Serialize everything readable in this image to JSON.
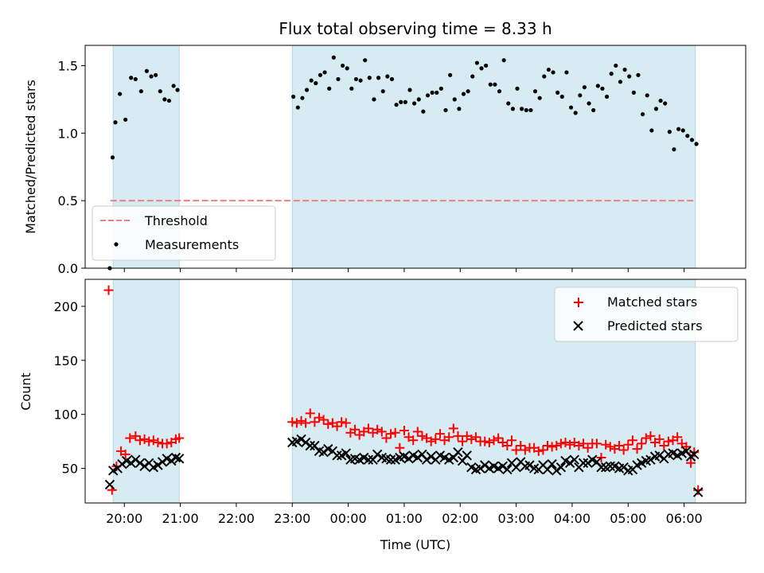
{
  "chart_data": [
    {
      "type": "scatter",
      "title": "Flux total observing time = 8.33 h",
      "xlabel": "",
      "ylabel": "Matched/Predicted stars",
      "xlim": [
        19.3,
        31.1
      ],
      "ylim": [
        0.0,
        1.65
      ],
      "yticks": [
        "0.0",
        "0.5",
        "1.0",
        "1.5"
      ],
      "ytick_values": [
        0.0,
        0.5,
        1.0,
        1.5
      ],
      "shaded_intervals": [
        [
          19.8,
          20.98
        ],
        [
          23.0,
          30.2
        ]
      ],
      "threshold": {
        "label": "Threshold",
        "value": 0.5,
        "color": "#f08080",
        "xrange": [
          19.75,
          30.2
        ]
      },
      "series": [
        {
          "name": "Measurements",
          "color": "#000000",
          "x": [
            19.74,
            19.79,
            19.84,
            19.92,
            20.02,
            20.12,
            20.2,
            20.3,
            20.4,
            20.48,
            20.56,
            20.64,
            20.72,
            20.8,
            20.88,
            20.95,
            23.02,
            23.1,
            23.18,
            23.26,
            23.34,
            23.42,
            23.5,
            23.58,
            23.66,
            23.74,
            23.82,
            23.9,
            23.98,
            24.06,
            24.14,
            24.22,
            24.3,
            24.38,
            24.46,
            24.54,
            24.62,
            24.7,
            24.78,
            24.86,
            24.94,
            25.02,
            25.1,
            25.18,
            25.26,
            25.34,
            25.42,
            25.5,
            25.58,
            25.66,
            25.74,
            25.82,
            25.9,
            25.98,
            26.06,
            26.14,
            26.22,
            26.3,
            26.38,
            26.46,
            26.54,
            26.62,
            26.7,
            26.78,
            26.86,
            26.94,
            27.02,
            27.1,
            27.18,
            27.26,
            27.34,
            27.42,
            27.5,
            27.58,
            27.66,
            27.74,
            27.82,
            27.9,
            27.98,
            28.06,
            28.14,
            28.22,
            28.3,
            28.38,
            28.46,
            28.54,
            28.62,
            28.7,
            28.78,
            28.86,
            28.94,
            29.02,
            29.1,
            29.18,
            29.26,
            29.34,
            29.42,
            29.5,
            29.58,
            29.66,
            29.74,
            29.82,
            29.9,
            29.98,
            30.06,
            30.14,
            30.22
          ],
          "y": [
            0.0,
            0.82,
            1.08,
            1.29,
            1.1,
            1.41,
            1.4,
            1.31,
            1.46,
            1.42,
            1.43,
            1.31,
            1.25,
            1.24,
            1.35,
            1.32,
            1.27,
            1.19,
            1.26,
            1.32,
            1.39,
            1.37,
            1.43,
            1.45,
            1.33,
            1.56,
            1.4,
            1.5,
            1.48,
            1.33,
            1.4,
            1.39,
            1.54,
            1.41,
            1.25,
            1.41,
            1.31,
            1.42,
            1.4,
            1.21,
            1.23,
            1.23,
            1.32,
            1.22,
            1.25,
            1.16,
            1.28,
            1.3,
            1.3,
            1.33,
            1.17,
            1.43,
            1.25,
            1.18,
            1.29,
            1.31,
            1.42,
            1.52,
            1.48,
            1.5,
            1.36,
            1.36,
            1.31,
            1.54,
            1.22,
            1.18,
            1.33,
            1.18,
            1.17,
            1.17,
            1.31,
            1.26,
            1.42,
            1.47,
            1.45,
            1.3,
            1.27,
            1.45,
            1.19,
            1.15,
            1.28,
            1.34,
            1.22,
            1.17,
            1.35,
            1.33,
            1.27,
            1.44,
            1.5,
            1.38,
            1.47,
            1.42,
            1.3,
            1.43,
            1.14,
            1.28,
            1.02,
            1.18,
            1.24,
            1.22,
            1.01,
            0.88,
            1.03,
            1.02,
            0.98,
            0.95,
            0.92
          ]
        }
      ]
    },
    {
      "type": "scatter",
      "title": "",
      "xlabel": "Time (UTC)",
      "ylabel": "Count",
      "xlim": [
        19.3,
        31.1
      ],
      "ylim": [
        18,
        225
      ],
      "yticks": [
        "50",
        "100",
        "150",
        "200"
      ],
      "ytick_values": [
        50,
        100,
        150,
        200
      ],
      "xticks": [
        "20:00",
        "21:00",
        "22:00",
        "23:00",
        "00:00",
        "01:00",
        "02:00",
        "03:00",
        "04:00",
        "05:00",
        "06:00"
      ],
      "xtick_values": [
        20,
        21,
        22,
        23,
        24,
        25,
        26,
        27,
        28,
        29,
        30
      ],
      "shaded_intervals": [
        [
          19.8,
          20.98
        ],
        [
          23.0,
          30.2
        ]
      ],
      "series": [
        {
          "name": "Matched stars",
          "marker": "+",
          "color": "#ff0000",
          "x": [
            19.72,
            19.78,
            19.86,
            19.94,
            20.02,
            20.1,
            20.2,
            20.28,
            20.36,
            20.44,
            20.52,
            20.6,
            20.68,
            20.76,
            20.84,
            20.92,
            20.98,
            23.0,
            23.08,
            23.16,
            23.24,
            23.32,
            23.4,
            23.48,
            23.56,
            23.64,
            23.72,
            23.8,
            23.88,
            23.96,
            24.04,
            24.12,
            24.2,
            24.28,
            24.36,
            24.44,
            24.52,
            24.6,
            24.68,
            24.76,
            24.84,
            24.92,
            25.0,
            25.08,
            25.16,
            25.24,
            25.32,
            25.4,
            25.48,
            25.56,
            25.64,
            25.72,
            25.8,
            25.88,
            25.96,
            26.04,
            26.12,
            26.2,
            26.28,
            26.36,
            26.44,
            26.52,
            26.6,
            26.68,
            26.76,
            26.84,
            26.92,
            27.0,
            27.08,
            27.16,
            27.24,
            27.32,
            27.4,
            27.48,
            27.56,
            27.64,
            27.72,
            27.8,
            27.88,
            27.96,
            28.04,
            28.12,
            28.2,
            28.28,
            28.36,
            28.44,
            28.52,
            28.6,
            28.68,
            28.76,
            28.84,
            28.92,
            29.0,
            29.08,
            29.16,
            29.24,
            29.32,
            29.4,
            29.48,
            29.56,
            29.64,
            29.72,
            29.8,
            29.88,
            29.96,
            30.04,
            30.12,
            30.18,
            30.25
          ],
          "y": [
            215,
            30,
            52,
            66,
            63,
            78,
            80,
            76,
            77,
            75,
            76,
            74,
            73,
            73,
            74,
            77,
            78,
            93,
            92,
            94,
            92,
            101,
            93,
            97,
            95,
            91,
            92,
            89,
            93,
            92,
            83,
            86,
            81,
            84,
            87,
            83,
            86,
            84,
            78,
            82,
            83,
            69,
            85,
            79,
            76,
            84,
            80,
            78,
            75,
            77,
            82,
            76,
            79,
            87,
            80,
            75,
            80,
            77,
            79,
            75,
            75,
            74,
            76,
            78,
            74,
            71,
            76,
            67,
            71,
            67,
            69,
            69,
            66,
            67,
            71,
            70,
            71,
            73,
            74,
            72,
            74,
            71,
            73,
            69,
            73,
            73,
            60,
            72,
            70,
            68,
            71,
            67,
            72,
            76,
            68,
            73,
            78,
            80,
            74,
            77,
            71,
            75,
            76,
            79,
            73,
            70,
            55,
            65,
            30
          ]
        },
        {
          "name": "Predicted stars",
          "marker": "x",
          "color": "#000000",
          "x": [
            19.74,
            19.8,
            19.88,
            19.96,
            20.04,
            20.12,
            20.2,
            20.28,
            20.36,
            20.44,
            20.52,
            20.6,
            20.68,
            20.76,
            20.84,
            20.92,
            20.98,
            23.0,
            23.08,
            23.16,
            23.24,
            23.32,
            23.4,
            23.48,
            23.56,
            23.64,
            23.72,
            23.8,
            23.88,
            23.96,
            24.04,
            24.12,
            24.2,
            24.28,
            24.36,
            24.44,
            24.52,
            24.6,
            24.68,
            24.76,
            24.84,
            24.92,
            25.0,
            25.08,
            25.16,
            25.24,
            25.32,
            25.4,
            25.48,
            25.56,
            25.64,
            25.72,
            25.8,
            25.88,
            25.96,
            26.04,
            26.12,
            26.2,
            26.28,
            26.36,
            26.44,
            26.52,
            26.6,
            26.68,
            26.76,
            26.84,
            26.92,
            27.0,
            27.08,
            27.16,
            27.24,
            27.32,
            27.4,
            27.48,
            27.56,
            27.64,
            27.72,
            27.8,
            27.88,
            27.96,
            28.04,
            28.12,
            28.2,
            28.28,
            28.36,
            28.44,
            28.52,
            28.6,
            28.68,
            28.76,
            28.84,
            28.92,
            29.0,
            29.08,
            29.16,
            29.24,
            29.32,
            29.4,
            29.48,
            29.56,
            29.64,
            29.72,
            29.8,
            29.88,
            29.96,
            30.04,
            30.12,
            30.18,
            30.25
          ],
          "y": [
            35,
            48,
            50,
            54,
            57,
            55,
            58,
            55,
            52,
            55,
            51,
            53,
            56,
            59,
            57,
            60,
            59,
            74,
            75,
            77,
            74,
            71,
            71,
            66,
            65,
            68,
            66,
            62,
            62,
            64,
            58,
            59,
            58,
            60,
            58,
            58,
            63,
            60,
            59,
            58,
            58,
            60,
            61,
            59,
            62,
            60,
            63,
            58,
            61,
            58,
            62,
            60,
            58,
            60,
            65,
            57,
            62,
            51,
            49,
            50,
            53,
            50,
            52,
            50,
            52,
            49,
            55,
            51,
            56,
            52,
            53,
            50,
            49,
            53,
            49,
            54,
            48,
            51,
            57,
            55,
            58,
            51,
            55,
            55,
            58,
            56,
            51,
            51,
            52,
            52,
            50,
            51,
            48,
            49,
            53,
            55,
            57,
            58,
            61,
            62,
            59,
            63,
            64,
            62,
            64,
            66,
            61,
            63,
            28
          ]
        }
      ]
    }
  ],
  "legend_markers": {
    "measurement_dot": "dot",
    "threshold_line": "dash",
    "matched": "+",
    "predicted": "x"
  }
}
